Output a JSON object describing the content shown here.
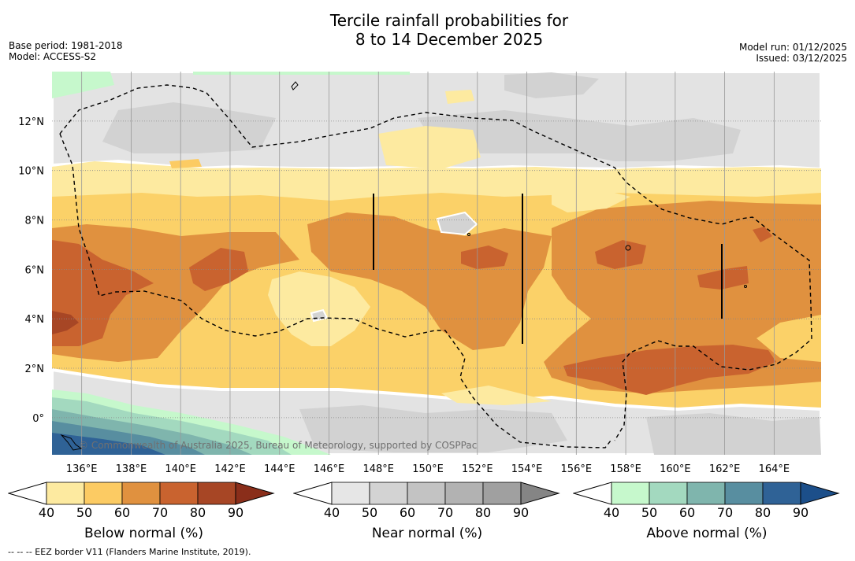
{
  "header": {
    "title_line1": "Tercile rainfall probabilities for",
    "title_line2": "8 to 14 December 2025",
    "base_period": "Base period: 1981-2018",
    "model": "Model: ACCESS-S2",
    "model_run": "Model run: 01/12/2025",
    "issued": "Issued: 03/12/2025"
  },
  "map": {
    "lon_range": [
      134.8,
      165.9
    ],
    "lat_range": [
      -1.5,
      14
    ],
    "lon_ticks": [
      "136°E",
      "138°E",
      "140°E",
      "142°E",
      "144°E",
      "146°E",
      "148°E",
      "150°E",
      "152°E",
      "154°E",
      "156°E",
      "158°E",
      "160°E",
      "162°E",
      "164°E"
    ],
    "lon_tick_values": [
      136,
      138,
      140,
      142,
      144,
      146,
      148,
      150,
      152,
      154,
      156,
      158,
      160,
      162,
      164
    ],
    "lat_ticks": [
      "12°N",
      "10°N",
      "8°N",
      "6°N",
      "4°N",
      "2°N",
      "0°"
    ],
    "lat_tick_values": [
      12,
      10,
      8,
      6,
      4,
      2,
      0
    ],
    "attribution": "© Commonwealth of Australia 2025, Bureau of Meteorology, supported by COSPPac"
  },
  "legends": [
    {
      "label": "Below normal (%)",
      "ticks": [
        "40",
        "50",
        "60",
        "70",
        "80",
        "90"
      ],
      "colors": [
        "#ffffff",
        "#fdeaa0",
        "#fccb63",
        "#e0913f",
        "#c9632f",
        "#a74625",
        "#8a2e1a"
      ]
    },
    {
      "label": "Near normal (%)",
      "ticks": [
        "40",
        "50",
        "60",
        "70",
        "80",
        "90"
      ],
      "colors": [
        "#ffffff",
        "#e6e6e6",
        "#d3d3d3",
        "#c3c3c3",
        "#b2b2b2",
        "#a0a0a0",
        "#858585"
      ]
    },
    {
      "label": "Above normal (%)",
      "ticks": [
        "40",
        "50",
        "60",
        "70",
        "80",
        "90"
      ],
      "colors": [
        "#ffffff",
        "#c6f8cc",
        "#a3d9bf",
        "#7fb5ad",
        "#588ea0",
        "#2f6296",
        "#1c4f8a"
      ]
    }
  ],
  "footnote": "--  --  -- EEZ border V11 (Flanders Marine Institute, 2019)."
}
